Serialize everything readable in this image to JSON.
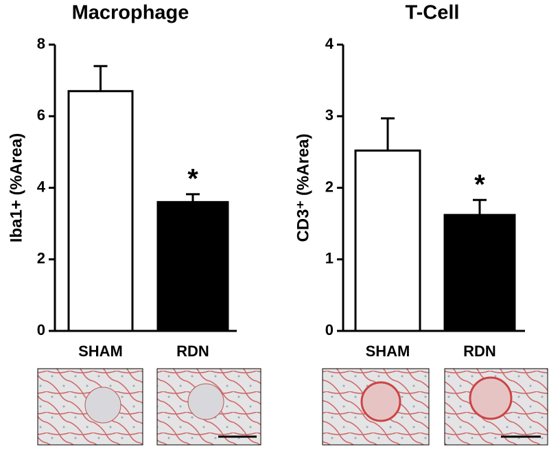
{
  "chart_data": [
    {
      "type": "bar",
      "title": "Macrophage",
      "y_label": "Iba1+ (%Area)",
      "categories": [
        "SHAM",
        "RDN"
      ],
      "values": [
        6.7,
        3.6
      ],
      "errors": [
        0.7,
        0.22
      ],
      "colors": [
        "#ffffff",
        "#000000"
      ],
      "annotations": [
        null,
        "*"
      ],
      "ylim": [
        0,
        8
      ],
      "yticks": [
        0,
        2,
        4,
        6,
        8
      ]
    },
    {
      "type": "bar",
      "title": "T-Cell",
      "y_label": "CD3⁺ (%Area)",
      "categories": [
        "SHAM",
        "RDN"
      ],
      "values": [
        2.52,
        1.62
      ],
      "errors": [
        0.45,
        0.21
      ],
      "colors": [
        "#ffffff",
        "#000000"
      ],
      "annotations": [
        null,
        "*"
      ],
      "ylim": [
        0,
        4
      ],
      "yticks": [
        0,
        1,
        2,
        3,
        4
      ]
    }
  ]
}
